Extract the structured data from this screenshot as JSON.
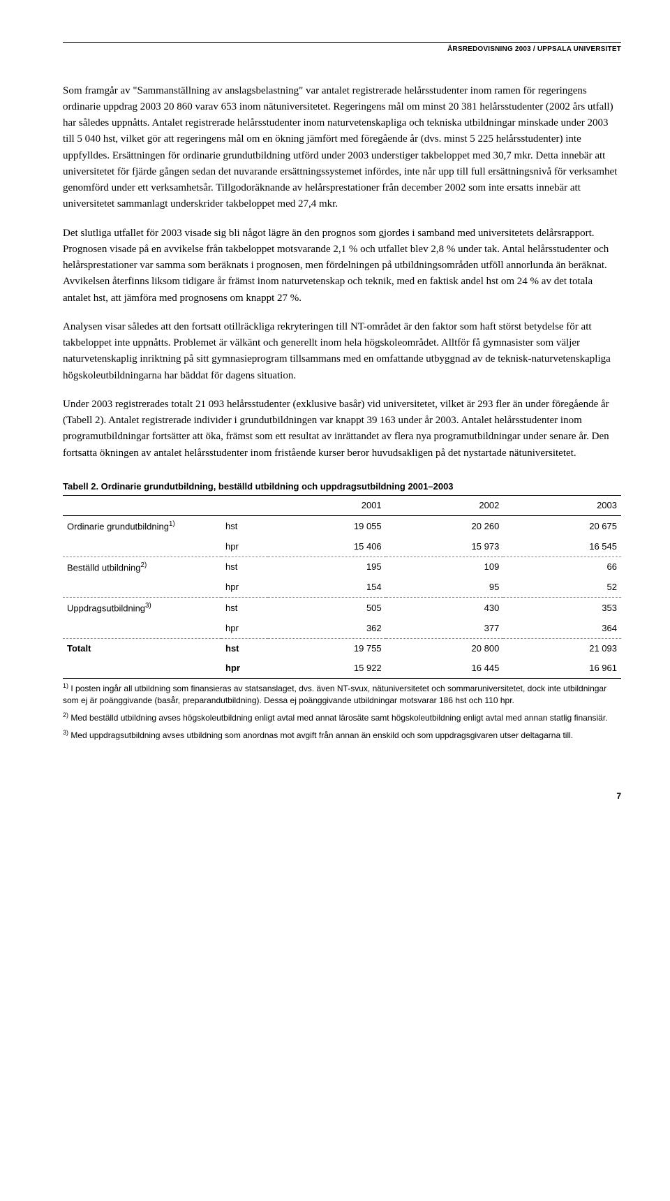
{
  "header": "ÅRSREDOVISNING 2003 / UPPSALA UNIVERSITET",
  "paragraphs": {
    "p1": "Som framgår av \"Sammanställning av anslagsbelastning\" var antalet registrerade helårsstudenter inom ramen för regeringens ordinarie uppdrag 2003 20 860 varav 653 inom nätuniversitetet. Regeringens mål om minst 20 381 helårsstudenter (2002 års utfall) har således uppnåtts. Antalet registrerade helårsstudenter inom naturvetenskapliga och tekniska utbildningar minskade under 2003 till 5 040 hst, vilket gör att regeringens mål om en ökning jämfört med föregående år (dvs. minst 5 225 helårsstudenter) inte uppfylldes. Ersättningen för ordinarie grundutbildning utförd under 2003 understiger takbeloppet med 30,7 mkr. Detta innebär att universitetet för fjärde gången sedan det nuvarande ersättningssystemet infördes, inte når upp till full ersättningsnivå för verksamhet genomförd under ett verksamhetsår. Tillgodoräknande av helårsprestationer från december 2002 som inte ersatts innebär att universitetet sammanlagt underskrider takbeloppet med 27,4 mkr.",
    "p2": "Det slutliga utfallet för 2003 visade sig bli något lägre än den prognos som gjordes i samband med universitetets delårsrapport. Prognosen visade på en avvikelse från takbeloppet motsvarande 2,1 % och utfallet blev 2,8 % under tak. Antal helårsstudenter och helårsprestationer var samma som beräknats i prognosen, men fördelningen på utbildningsområden utföll annorlunda än beräknat. Avvikelsen återfinns liksom tidigare år främst inom naturvetenskap och teknik, med en faktisk andel hst om 24 % av det totala antalet hst, att jämföra med prognosens om knappt 27 %.",
    "p3": "Analysen visar således att den fortsatt otillräckliga rekryteringen till NT-området är den faktor som haft störst betydelse för att takbeloppet inte uppnåtts. Problemet är välkänt och generellt inom hela högskoleområdet. Alltför få gymnasister som väljer naturvetenskaplig inriktning på sitt gymnasieprogram tillsammans med en omfattande utbyggnad av de teknisk-naturvetenskapliga högskoleutbildningarna har bäddat för dagens situation.",
    "p4": "Under 2003 registrerades totalt 21 093 helårsstudenter (exklusive basår) vid universitetet, vilket är 293 fler än under föregående år (Tabell 2). Antalet registrerade individer i grundutbildningen var knappt 39 163 under år 2003. Antalet helårsstudenter inom programutbildningar fortsätter att öka, främst som ett resultat av inrättandet av flera nya programutbildningar under senare år. Den fortsatta ökningen av antalet helårsstudenter inom fristående kurser beror huvudsakligen på det nystartade nätuniversitetet."
  },
  "table": {
    "title": "Tabell 2.  Ordinarie grundutbildning, beställd utbildning och uppdragsutbildning 2001–2003",
    "columns": [
      "",
      "",
      "2001",
      "2002",
      "2003"
    ],
    "rows": [
      {
        "label": "Ordinarie grundutbildning",
        "sup": "1)",
        "unit": "hst",
        "v": [
          "19 055",
          "20 260",
          "20 675"
        ],
        "dashed": false
      },
      {
        "label": "",
        "sup": "",
        "unit": "hpr",
        "v": [
          "15 406",
          "15 973",
          "16 545"
        ],
        "dashed": true
      },
      {
        "label": "Beställd utbildning",
        "sup": "2)",
        "unit": "hst",
        "v": [
          "195",
          "109",
          "66"
        ],
        "dashed": false
      },
      {
        "label": "",
        "sup": "",
        "unit": "hpr",
        "v": [
          "154",
          "95",
          "52"
        ],
        "dashed": true
      },
      {
        "label": "Uppdragsutbildning",
        "sup": "3)",
        "unit": "hst",
        "v": [
          "505",
          "430",
          "353"
        ],
        "dashed": false
      },
      {
        "label": "",
        "sup": "",
        "unit": "hpr",
        "v": [
          "362",
          "377",
          "364"
        ],
        "dashed": true
      },
      {
        "label": "Totalt",
        "sup": "",
        "unit": "hst",
        "v": [
          "19 755",
          "20 800",
          "21 093"
        ],
        "dashed": false,
        "total": true
      },
      {
        "label": "",
        "sup": "",
        "unit": "hpr",
        "v": [
          "15 922",
          "16 445",
          "16 961"
        ],
        "dashed": false,
        "total": true,
        "solid": true
      }
    ]
  },
  "footnotes": {
    "f1_pre": "1)",
    "f1": " I posten ingår all utbildning som finansieras av statsanslaget, dvs. även NT-svux, nätuniversitetet och sommaruniversitetet, dock inte utbildningar som ej är poänggivande (basår, preparandutbildning). Dessa ej poänggivande utbildningar motsvarar 186 hst och 110 hpr.",
    "f2_pre": "2)",
    "f2": " Med beställd utbildning avses högskoleutbildning enligt avtal med annat lärosäte samt högskoleutbildning enligt avtal med annan statlig finansiär.",
    "f3_pre": "3)",
    "f3": " Med uppdragsutbildning avses utbildning som anordnas mot avgift från annan än enskild och som uppdragsgivaren utser deltagarna till."
  },
  "pageNumber": "7"
}
